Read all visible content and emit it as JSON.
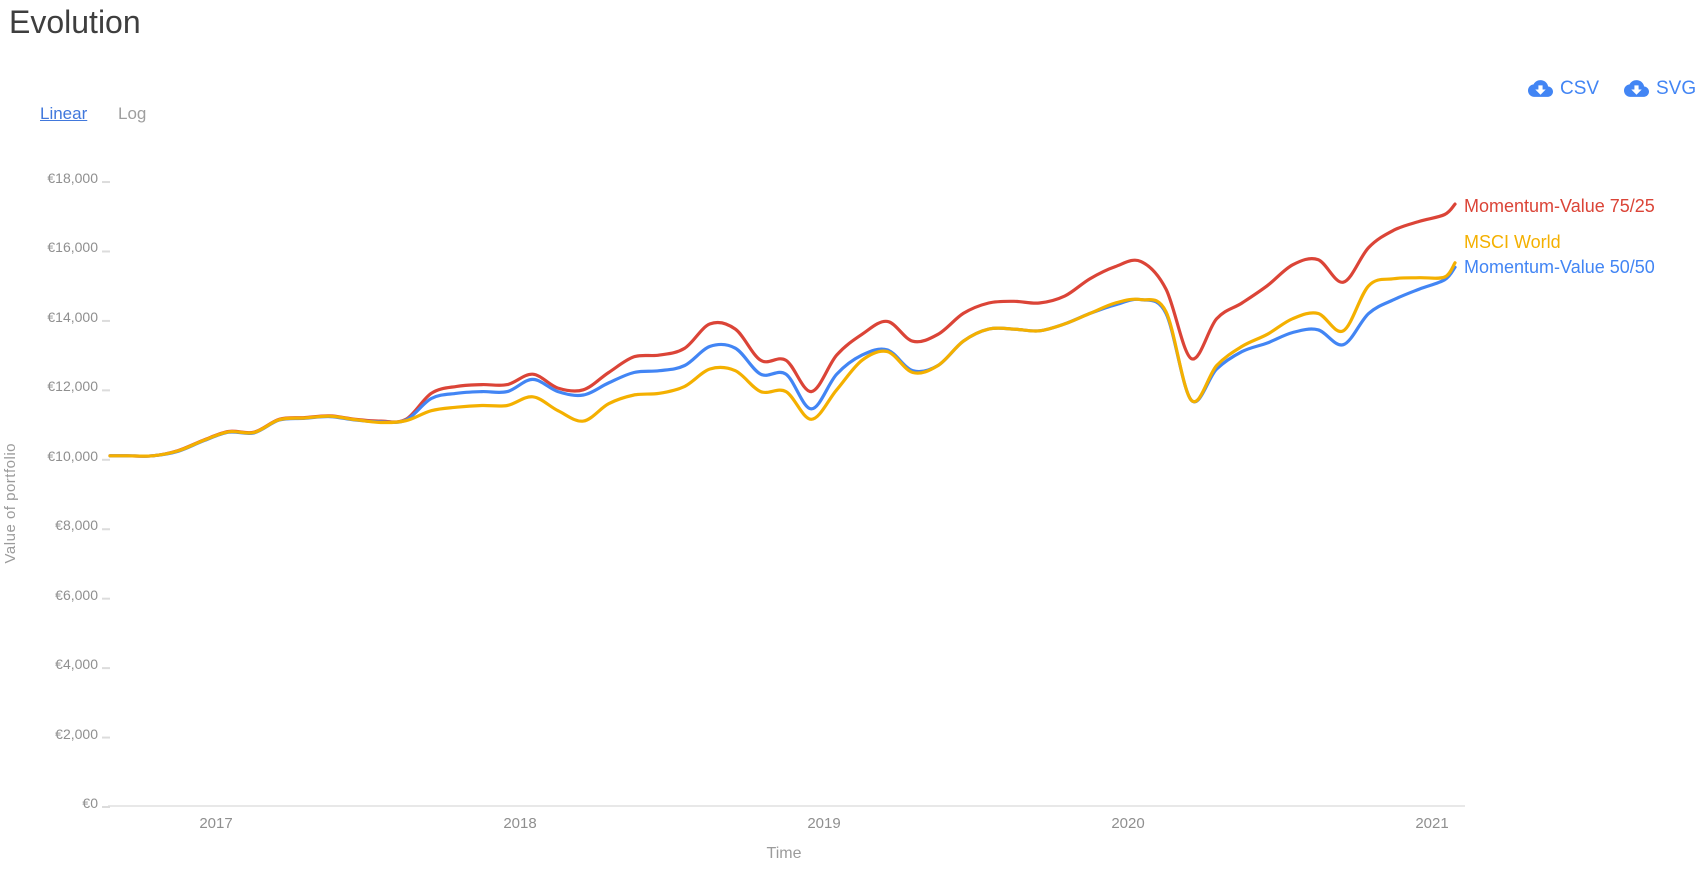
{
  "page": {
    "title": "Evolution"
  },
  "scale_toggle": {
    "linear": "Linear",
    "log": "Log",
    "active": "Linear"
  },
  "export": {
    "csv": "CSV",
    "svg": "SVG"
  },
  "colors": {
    "link_blue": "#4178dc",
    "export_blue": "#4285f4",
    "axis_text": "#8f8f8f",
    "axis_line": "#e0e0e0",
    "title_text": "#3e3e3e",
    "series_red": "#db4437",
    "series_yellow": "#f4b000",
    "series_blue": "#4285f4"
  },
  "chart_data": {
    "type": "line",
    "title": "Evolution",
    "xlabel": "Time",
    "ylabel": "Value of portfolio",
    "grid": false,
    "legend_position": "right-of-line-end",
    "currency": "EUR",
    "y_range": [
      0,
      18000
    ],
    "y_tick_labels": [
      "€0",
      "€2,000",
      "€4,000",
      "€6,000",
      "€8,000",
      "€10,000",
      "€12,000",
      "€14,000",
      "€16,000",
      "€18,000"
    ],
    "y_tick_values": [
      0,
      2000,
      4000,
      6000,
      8000,
      10000,
      12000,
      14000,
      16000,
      18000
    ],
    "x_tick_labels": [
      "2017",
      "2018",
      "2019",
      "2020",
      "2021"
    ],
    "x_tick_years": [
      2017,
      2018,
      2019,
      2020,
      2021
    ],
    "x_months": [
      "2016-08",
      "2016-09",
      "2016-10",
      "2016-11",
      "2016-12",
      "2017-01",
      "2017-02",
      "2017-03",
      "2017-04",
      "2017-05",
      "2017-06",
      "2017-07",
      "2017-08",
      "2017-09",
      "2017-10",
      "2017-11",
      "2017-12",
      "2018-01",
      "2018-02",
      "2018-03",
      "2018-04",
      "2018-05",
      "2018-06",
      "2018-07",
      "2018-08",
      "2018-09",
      "2018-10",
      "2018-11",
      "2018-12",
      "2019-01",
      "2019-02",
      "2019-03",
      "2019-04",
      "2019-05",
      "2019-06",
      "2019-07",
      "2019-08",
      "2019-09",
      "2019-10",
      "2019-11",
      "2019-12",
      "2020-01",
      "2020-02",
      "2020-03",
      "2020-04",
      "2020-05",
      "2020-06",
      "2020-07",
      "2020-08",
      "2020-09",
      "2020-10",
      "2020-11",
      "2020-12",
      "2021-01",
      "2021-02"
    ],
    "series": [
      {
        "name": "Momentum-Value 75/25",
        "color": "#db4437",
        "values": [
          10000,
          10000,
          10000,
          10150,
          10450,
          10700,
          10680,
          11050,
          11100,
          11150,
          11050,
          11000,
          11050,
          11800,
          12000,
          12050,
          12050,
          12350,
          11950,
          11900,
          12400,
          12850,
          12900,
          13100,
          13800,
          13650,
          12750,
          12750,
          11850,
          12900,
          13500,
          13870,
          13300,
          13500,
          14100,
          14400,
          14450,
          14400,
          14600,
          15100,
          15450,
          15600,
          14800,
          12800,
          13950,
          14400,
          14900,
          15500,
          15650,
          15000,
          16000,
          16500,
          16750,
          16950,
          17250
        ]
      },
      {
        "name": "MSCI World",
        "color": "#f4b000",
        "values": [
          10000,
          10000,
          10000,
          10140,
          10440,
          10690,
          10670,
          11040,
          11090,
          11140,
          11040,
          10960,
          11010,
          11300,
          11400,
          11450,
          11450,
          11700,
          11300,
          11000,
          11500,
          11750,
          11800,
          12000,
          12500,
          12450,
          11850,
          11850,
          11050,
          11900,
          12750,
          13000,
          12400,
          12600,
          13300,
          13650,
          13650,
          13600,
          13800,
          14100,
          14400,
          14500,
          14150,
          11600,
          12600,
          13150,
          13500,
          13950,
          14100,
          13600,
          14900,
          15100,
          15130,
          15150,
          15560
        ]
      },
      {
        "name": "Momentum-Value 50/50",
        "color": "#4285f4",
        "values": [
          10000,
          10000,
          10000,
          10130,
          10430,
          10680,
          10660,
          11030,
          11080,
          11130,
          11030,
          10980,
          11030,
          11650,
          11800,
          11850,
          11850,
          12200,
          11850,
          11750,
          12100,
          12400,
          12450,
          12600,
          13150,
          13100,
          12350,
          12350,
          11350,
          12350,
          12900,
          13050,
          12450,
          12600,
          13300,
          13650,
          13650,
          13600,
          13800,
          14100,
          14350,
          14500,
          14100,
          11600,
          12500,
          13000,
          13250,
          13550,
          13630,
          13200,
          14100,
          14500,
          14800,
          15070,
          15430
        ]
      }
    ]
  }
}
